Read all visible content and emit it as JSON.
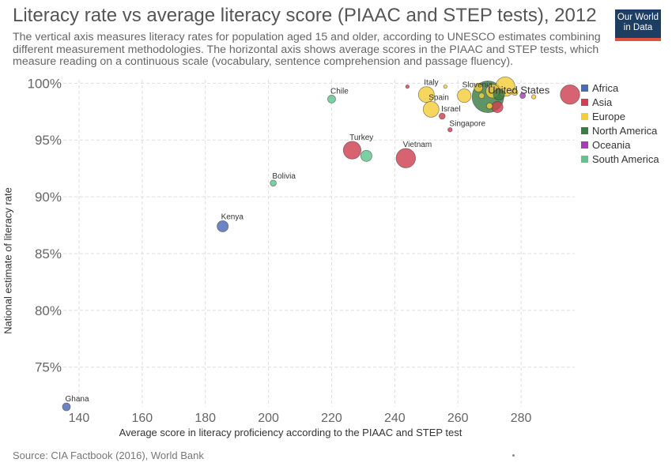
{
  "header": {
    "title": "Literacy rate vs average literacy score (PIAAC and STEP tests), 2012",
    "subtitle": "The vertical axis measures literacy rates for population aged 15 and older, according to UNESCO estimates combining different measurement methodologies. The horizontal axis shows average scores in the PIAAC and STEP tests, which measure reading on a continuous scale (vocabulary, sentence comprehension and passage fluency)."
  },
  "logo": {
    "line1": "Our World",
    "line2": "in Data"
  },
  "footer": {
    "source": "Source: CIA Factbook (2016), World Bank"
  },
  "colors": {
    "Africa": "#4c6ab5",
    "Asia": "#ce4152",
    "Europe": "#f5cd3b",
    "North America": "#3c7c46",
    "Oceania": "#a63db6",
    "South America": "#5fc48e"
  },
  "chart_data": {
    "type": "scatter",
    "title": "Literacy rate vs average literacy score (PIAAC and STEP tests), 2012",
    "xlabel": "Average score in literacy proficiency according to the PIAAC and STEP test",
    "ylabel": "National estimate of literacy rate",
    "xlim": [
      135,
      297
    ],
    "ylim": [
      71.5,
      100.3
    ],
    "xticks": [
      140,
      160,
      180,
      200,
      220,
      240,
      260,
      280
    ],
    "yticks": [
      75,
      80,
      85,
      90,
      95,
      100
    ],
    "xtick_labels": [
      "140",
      "160",
      "180",
      "200",
      "220",
      "240",
      "260",
      "280"
    ],
    "ytick_labels": [
      "75%",
      "80%",
      "85%",
      "90%",
      "95%",
      "100%"
    ],
    "grid": true,
    "legend": {
      "position": "right",
      "entries": [
        "Africa",
        "Asia",
        "Europe",
        "North America",
        "Oceania",
        "South America"
      ]
    },
    "points": [
      {
        "label": "Ghana",
        "region": "Africa",
        "x": 136,
        "y": 71.5,
        "size": 1
      },
      {
        "label": "Kenya",
        "region": "Africa",
        "x": 185.5,
        "y": 87.4,
        "size": 2
      },
      {
        "label": "Bolivia",
        "region": "South America",
        "x": 201.5,
        "y": 91.2,
        "size": 0.6
      },
      {
        "label": "Chile",
        "region": "South America",
        "x": 220,
        "y": 98.6,
        "size": 1
      },
      {
        "label": "",
        "region": "South America",
        "x": 231,
        "y": 93.6,
        "size": 2
      },
      {
        "label": "Turkey",
        "region": "Asia",
        "x": 226.5,
        "y": 94.1,
        "size": 5
      },
      {
        "label": "Vietnam",
        "region": "Asia",
        "x": 243.5,
        "y": 93.4,
        "size": 6
      },
      {
        "label": "",
        "region": "Asia",
        "x": 244,
        "y": 99.7,
        "size": 0.2
      },
      {
        "label": "Italy",
        "region": "Europe",
        "x": 250,
        "y": 99.0,
        "size": 4
      },
      {
        "label": "Spain",
        "region": "Europe",
        "x": 251.5,
        "y": 97.7,
        "size": 4
      },
      {
        "label": "Israel",
        "region": "Asia",
        "x": 255,
        "y": 97.1,
        "size": 0.6
      },
      {
        "label": "Singapore",
        "region": "Asia",
        "x": 257.5,
        "y": 95.9,
        "size": 0.3
      },
      {
        "label": "Slovenia",
        "region": "Europe",
        "x": 262,
        "y": 98.9,
        "size": 3
      },
      {
        "label": "",
        "region": "Europe",
        "x": 256,
        "y": 99.7,
        "size": 0.2
      },
      {
        "label": "",
        "region": "Europe",
        "x": 266.5,
        "y": 99.6,
        "size": 1.2
      },
      {
        "label": "",
        "region": "Europe",
        "x": 267.5,
        "y": 98.9,
        "size": 0.5
      },
      {
        "label": "",
        "region": "Europe",
        "x": 270,
        "y": 98.0,
        "size": 0.6
      },
      {
        "label": "",
        "region": "Europe",
        "x": 271,
        "y": 99.3,
        "size": 3
      },
      {
        "label": "",
        "region": "Europe",
        "x": 275,
        "y": 99.7,
        "size": 6
      },
      {
        "label": "",
        "region": "Europe",
        "x": 278,
        "y": 99.2,
        "size": 0.6
      },
      {
        "label": "",
        "region": "Europe",
        "x": 284,
        "y": 98.8,
        "size": 0.3
      },
      {
        "label": "United States",
        "region": "North America",
        "x": 269.5,
        "y": 98.8,
        "size": 16
      },
      {
        "label": "",
        "region": "North America",
        "x": 273,
        "y": 99.0,
        "size": 2
      },
      {
        "label": "",
        "region": "Asia",
        "x": 272.5,
        "y": 97.9,
        "size": 2
      },
      {
        "label": "",
        "region": "Oceania",
        "x": 280.5,
        "y": 98.9,
        "size": 0.5
      },
      {
        "label": "",
        "region": "Asia",
        "x": 295.5,
        "y": 99.0,
        "size": 6
      }
    ]
  }
}
